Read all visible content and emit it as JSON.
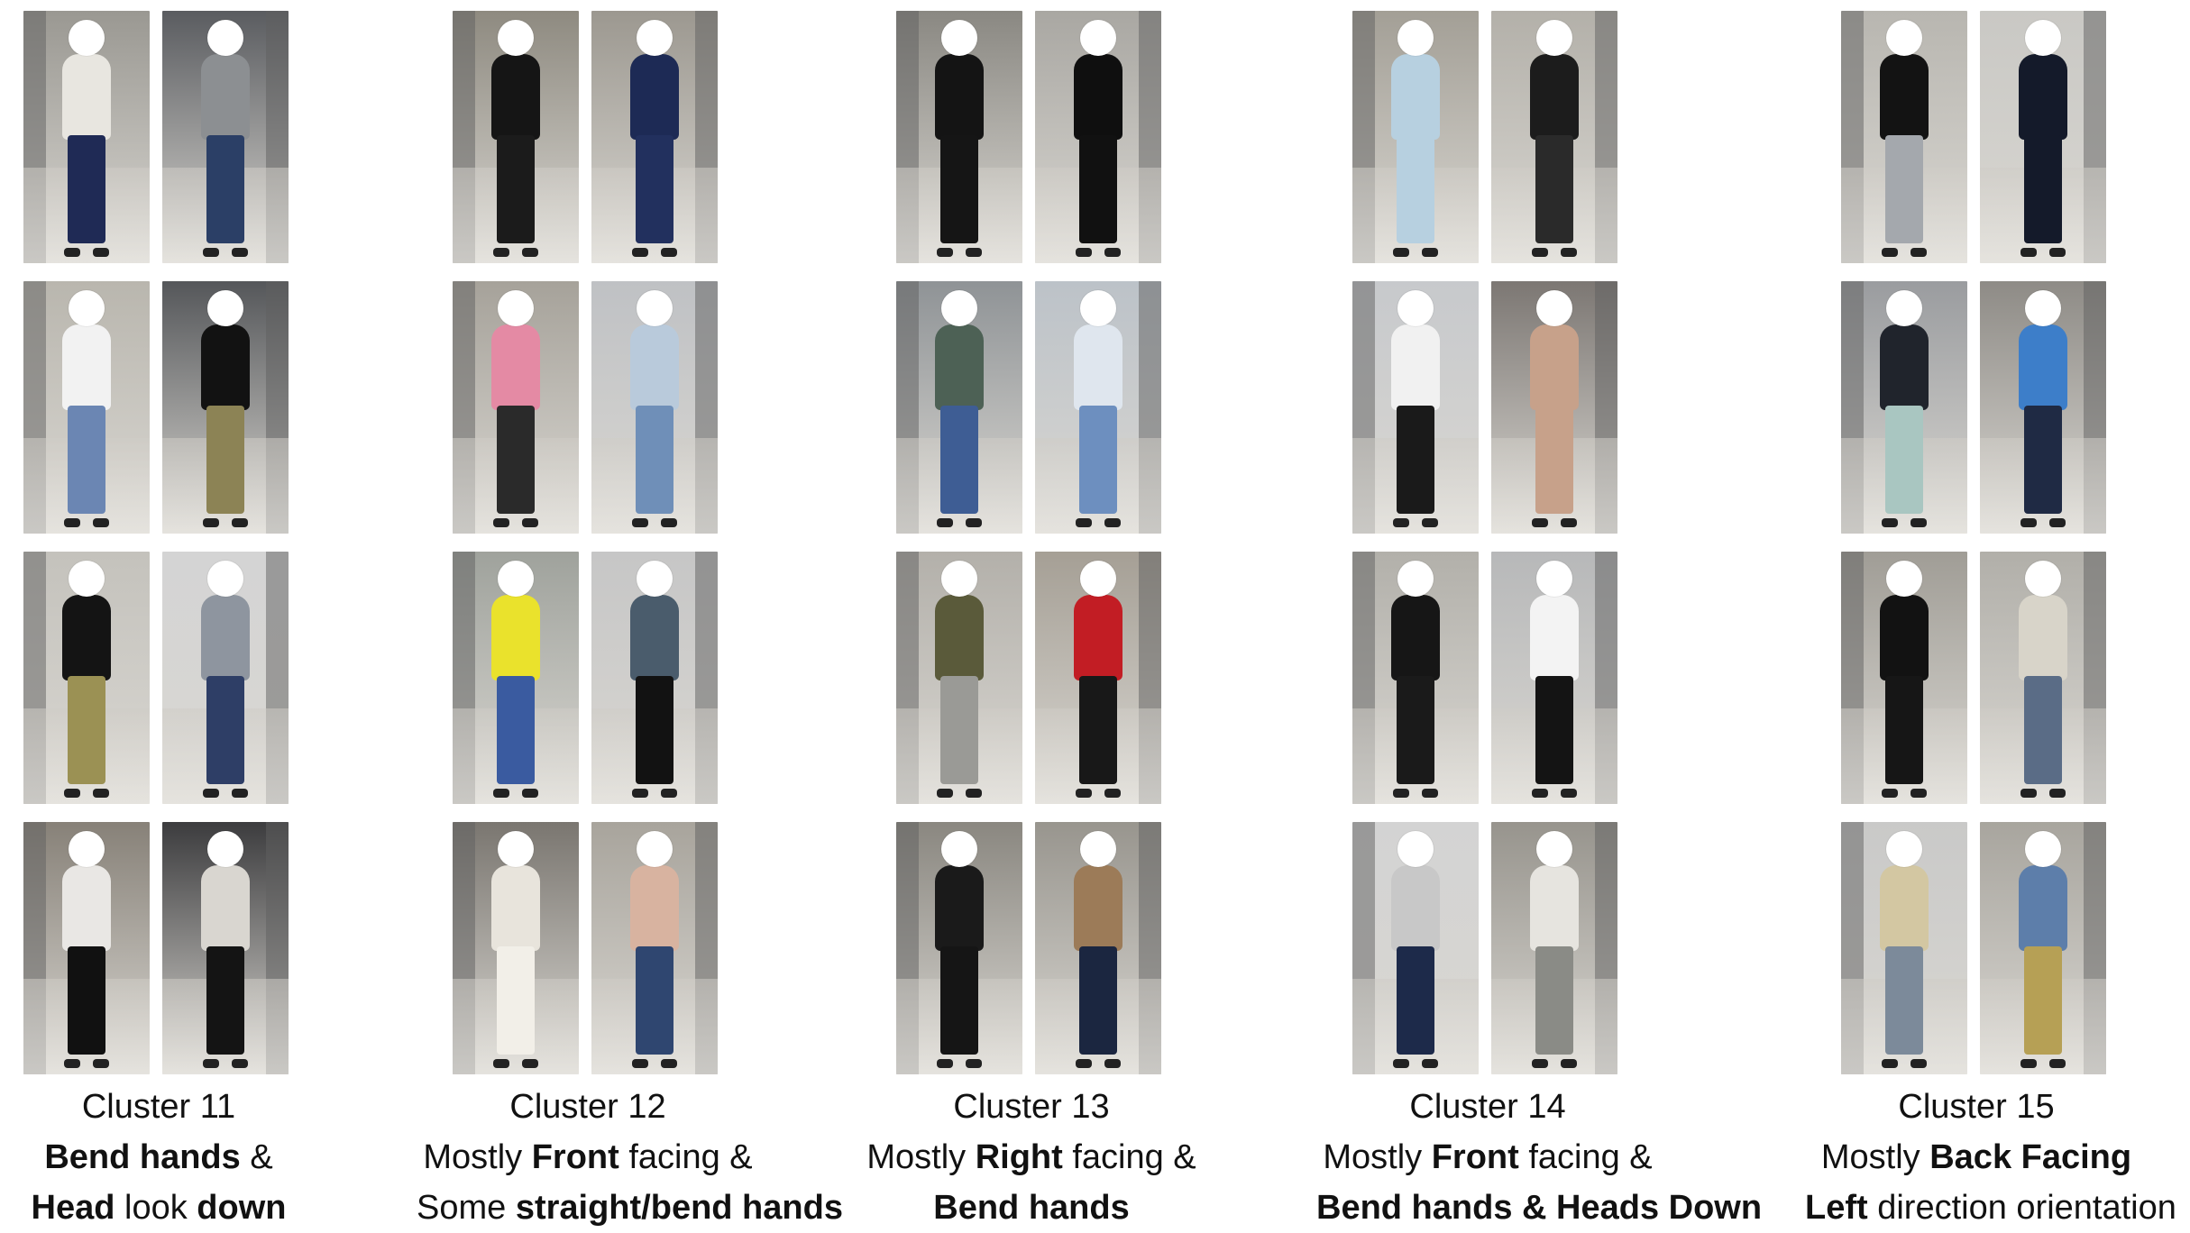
{
  "clusters": [
    {
      "title": "Cluster 11",
      "line2": [
        {
          "t": "Bend hands",
          "b": true
        },
        {
          "t": " &",
          "b": false
        }
      ],
      "line3": [
        {
          "t": "Head",
          "b": true
        },
        {
          "t": " look ",
          "b": false
        },
        {
          "t": "down",
          "b": true
        }
      ],
      "photos": [
        {
          "bg": "#9a9892",
          "top": "#e8e6e0",
          "bottom": "#1f2a55"
        },
        {
          "bg": "#5a5c60",
          "top": "#8c8f92",
          "bottom": "#2b3f66"
        },
        {
          "bg": "#b9b6ae",
          "top": "#f2f2f2",
          "bottom": "#6b86b3"
        },
        {
          "bg": "#55575a",
          "top": "#121212",
          "bottom": "#8c8355"
        },
        {
          "bg": "#c4c2bc",
          "top": "#141414",
          "bottom": "#9b9154"
        },
        {
          "bg": "#d4d4d4",
          "top": "#8e959f",
          "bottom": "#2e3e66"
        },
        {
          "bg": "#878178",
          "top": "#e9e7e4",
          "bottom": "#111111"
        },
        {
          "bg": "#3c3c3e",
          "top": "#d9d6d0",
          "bottom": "#141414"
        }
      ]
    },
    {
      "title": "Cluster 12",
      "line2": [
        {
          "t": "Mostly ",
          "b": false
        },
        {
          "t": "Front",
          "b": true
        },
        {
          "t": " facing &",
          "b": false
        }
      ],
      "line3": [
        {
          "t": "Some ",
          "b": false
        },
        {
          "t": "straight/bend hands",
          "b": true
        }
      ],
      "photos": [
        {
          "bg": "#8e8a80",
          "top": "#151515",
          "bottom": "#1b1b1b"
        },
        {
          "bg": "#9c9890",
          "top": "#1d2a55",
          "bottom": "#22305e"
        },
        {
          "bg": "#a6a29a",
          "top": "#e48aa4",
          "bottom": "#2a2a2a"
        },
        {
          "bg": "#bfc1c4",
          "top": "#b9cadb",
          "bottom": "#6f8fb8"
        },
        {
          "bg": "#9fa29c",
          "top": "#eae22c",
          "bottom": "#3a5ba0"
        },
        {
          "bg": "#c6c6c6",
          "top": "#4a5c6c",
          "bottom": "#121212"
        },
        {
          "bg": "#7a7670",
          "top": "#e8e4dc",
          "bottom": "#f2efe8"
        },
        {
          "bg": "#a8a49c",
          "top": "#d8b3a0",
          "bottom": "#2f4670"
        }
      ]
    },
    {
      "title": "Cluster 13",
      "line2": [
        {
          "t": "Mostly ",
          "b": false
        },
        {
          "t": "Right",
          "b": true
        },
        {
          "t": " facing &",
          "b": false
        }
      ],
      "line3": [
        {
          "t": "Bend hands",
          "b": true
        }
      ],
      "photos": [
        {
          "bg": "#8a8882",
          "top": "#141414",
          "bottom": "#151515"
        },
        {
          "bg": "#a9a7a2",
          "top": "#0f0f0f",
          "bottom": "#111111"
        },
        {
          "bg": "#8f9396",
          "top": "#4d6155",
          "bottom": "#3e5d94"
        },
        {
          "bg": "#bcc2c8",
          "top": "#dfe6ee",
          "bottom": "#6d8fbf"
        },
        {
          "bg": "#b3b0aa",
          "top": "#5a5a3a",
          "bottom": "#9a9a96"
        },
        {
          "bg": "#a59f95",
          "top": "#c21d24",
          "bottom": "#181818"
        },
        {
          "bg": "#8a8780",
          "top": "#1a1a1a",
          "bottom": "#151515"
        },
        {
          "bg": "#98958e",
          "top": "#9c7b58",
          "bottom": "#1b2640"
        }
      ]
    },
    {
      "title": "Cluster 14",
      "line2": [
        {
          "t": "Mostly ",
          "b": false
        },
        {
          "t": "Front",
          "b": true
        },
        {
          "t": " facing &",
          "b": false
        }
      ],
      "line3": [
        {
          "t": "Bend hands & Heads Down",
          "b": true
        }
      ],
      "photos": [
        {
          "bg": "#a39f96",
          "top": "#b7d0e0",
          "bottom": "#b7d0e0"
        },
        {
          "bg": "#b3b0a9",
          "top": "#1c1c1c",
          "bottom": "#2a2a2a"
        },
        {
          "bg": "#c7c9cc",
          "top": "#f1f1f1",
          "bottom": "#1a1a1a"
        },
        {
          "bg": "#7c7773",
          "top": "#c7a18a",
          "bottom": "#c7a18a"
        },
        {
          "bg": "#b2b0aa",
          "top": "#161616",
          "bottom": "#1a1a1a"
        },
        {
          "bg": "#b7b8b9",
          "top": "#f3f3f3",
          "bottom": "#141414"
        },
        {
          "bg": "#d3d3d3",
          "top": "#c8c8c8",
          "bottom": "#1d2a4a"
        },
        {
          "bg": "#97948d",
          "top": "#e6e4df",
          "bottom": "#8a8b86"
        }
      ]
    },
    {
      "title": "Cluster 15",
      "line2": [
        {
          "t": "Mostly ",
          "b": false
        },
        {
          "t": "Back Facing",
          "b": true
        }
      ],
      "line3": [
        {
          "t": "Left",
          "b": true
        },
        {
          "t": " direction orientation",
          "b": false
        }
      ],
      "photos": [
        {
          "bg": "#b8b6b0",
          "top": "#131313",
          "bottom": "#a4a8ad"
        },
        {
          "bg": "#c9c8c4",
          "top": "#141a2a",
          "bottom": "#141a2a"
        },
        {
          "bg": "#9a9c9f",
          "top": "#20242c",
          "bottom": "#a9c6c1"
        },
        {
          "bg": "#8e8b86",
          "top": "#3d7ec9",
          "bottom": "#1f2a44"
        },
        {
          "bg": "#a09d96",
          "top": "#121212",
          "bottom": "#161616"
        },
        {
          "bg": "#b1afa9",
          "top": "#d8d4c9",
          "bottom": "#5a6c86"
        },
        {
          "bg": "#c9c9c8",
          "top": "#d3c7a2",
          "bottom": "#7c8a9a"
        },
        {
          "bg": "#a8a59e",
          "top": "#5d7eaa",
          "bottom": "#b6a055"
        }
      ]
    }
  ]
}
